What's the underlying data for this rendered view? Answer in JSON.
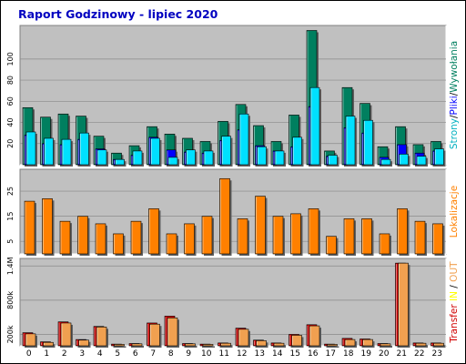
{
  "chart_data": {
    "type": "bar",
    "title": "Raport Godzinowy -  lipiec 2020",
    "categories": [
      "0",
      "1",
      "2",
      "3",
      "4",
      "5",
      "6",
      "7",
      "8",
      "9",
      "10",
      "11",
      "12",
      "13",
      "14",
      "15",
      "16",
      "17",
      "18",
      "19",
      "20",
      "21",
      "22",
      "23"
    ],
    "colors": {
      "strony": "#007f5f",
      "pliki": "#0000ff",
      "wywolania": "#00e0ff",
      "lokalizacje": "#ff8000",
      "transfer_in": "#d00000",
      "transfer_out": "#f0a050",
      "panel_bg": "#c0c0c0",
      "title": "#0000c0"
    },
    "panels": [
      {
        "id": "hits",
        "ylabel_parts": [
          {
            "text": "Strony",
            "color": "#00b0c0"
          },
          {
            "text": "/",
            "color": "#000000"
          },
          {
            "text": "Pliki",
            "color": "#0000ff"
          },
          {
            "text": "/",
            "color": "#000000"
          },
          {
            "text": "Wywołania",
            "color": "#007f5f"
          }
        ],
        "yticks": [
          20,
          40,
          60,
          80,
          100
        ],
        "ylim": [
          0,
          130
        ],
        "series": [
          {
            "name": "Strony",
            "values": [
              54,
              45,
              48,
              46,
              27,
              11,
              18,
              36,
              29,
              25,
              22,
              41,
              57,
              37,
              22,
              47,
              127,
              13,
              73,
              58,
              17,
              36,
              19,
              22
            ]
          },
          {
            "name": "Pliki",
            "values": [
              28,
              20,
              19,
              24,
              15,
              5,
              9,
              26,
              14,
              12,
              11,
              23,
              33,
              18,
              13,
              17,
              55,
              8,
              35,
              30,
              7,
              19,
              11,
              13
            ]
          },
          {
            "name": "Wywołania",
            "values": [
              31,
              25,
              24,
              30,
              14,
              5,
              13,
              25,
              7,
              14,
              13,
              27,
              48,
              17,
              13,
              26,
              73,
              9,
              46,
              42,
              5,
              10,
              8,
              15
            ]
          }
        ]
      },
      {
        "id": "visits",
        "ylabel_parts": [
          {
            "text": "Lokalizacje",
            "color": "#ff8000"
          }
        ],
        "yticks": [
          5,
          15,
          25
        ],
        "ylim": [
          0,
          33
        ],
        "series": [
          {
            "name": "Lokalizacje",
            "values": [
              21,
              22,
              13,
              15,
              12,
              8,
              13,
              18,
              8,
              12,
              15,
              30,
              14,
              23,
              15,
              16,
              18,
              7,
              14,
              14,
              8,
              18,
              13,
              12
            ]
          }
        ]
      },
      {
        "id": "bytes",
        "ylabel_parts": [
          {
            "text": "Transfer",
            "color": "#d00000"
          },
          {
            "text": " ",
            "color": "#000000"
          },
          {
            "text": "IN",
            "color": "#ffff00"
          },
          {
            "text": " / ",
            "color": "#000000"
          },
          {
            "text": "OUT",
            "color": "#f0a050"
          }
        ],
        "yticks_labels": [
          "200k",
          "800k",
          "1.4M"
        ],
        "yticks": [
          200,
          800,
          1400
        ],
        "ylim": [
          0,
          1500
        ],
        "series": [
          {
            "name": "IN",
            "values": [
              230,
              70,
              420,
              110,
              340,
              30,
              40,
              400,
              520,
              40,
              30,
              50,
              310,
              100,
              50,
              200,
              370,
              30,
              130,
              120,
              40,
              1450,
              50,
              50
            ]
          },
          {
            "name": "OUT",
            "values": [
              210,
              60,
              400,
              100,
              330,
              25,
              35,
              380,
              490,
              35,
              25,
              45,
              290,
              90,
              45,
              185,
              350,
              25,
              110,
              110,
              35,
              1450,
              45,
              45
            ]
          }
        ]
      }
    ]
  }
}
